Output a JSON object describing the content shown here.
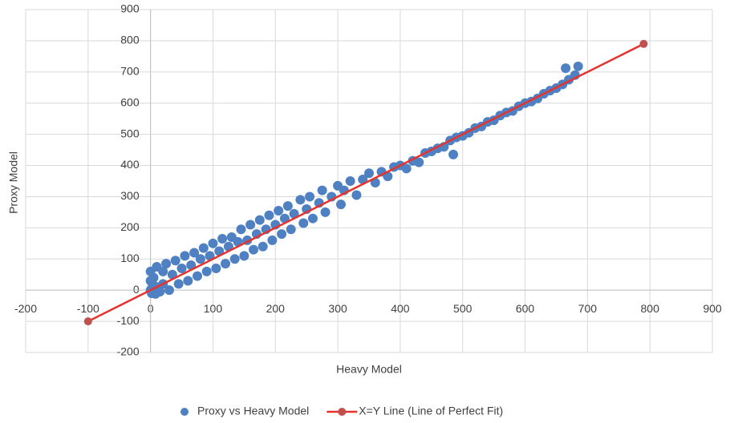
{
  "chart_data": {
    "type": "scatter",
    "x_label": "Heavy Model",
    "y_label": "Proxy Model",
    "xlim": [
      -200,
      900
    ],
    "ylim": [
      -200,
      900
    ],
    "xticks": [
      -200,
      -100,
      0,
      100,
      200,
      300,
      400,
      500,
      600,
      700,
      800,
      900
    ],
    "yticks": [
      -200,
      -100,
      0,
      100,
      200,
      300,
      400,
      500,
      600,
      700,
      800,
      900
    ],
    "grid": true,
    "legend": "bottom",
    "series": [
      {
        "name": "Proxy vs Heavy Model",
        "type": "scatter",
        "color": "#4f81c2",
        "x": [
          0,
          0,
          2,
          5,
          10,
          10,
          15,
          20,
          20,
          25,
          30,
          35,
          40,
          45,
          50,
          55,
          60,
          65,
          70,
          75,
          80,
          85,
          90,
          95,
          100,
          105,
          110,
          115,
          120,
          125,
          130,
          135,
          140,
          145,
          150,
          155,
          160,
          165,
          170,
          175,
          180,
          185,
          190,
          195,
          200,
          205,
          210,
          215,
          220,
          225,
          230,
          240,
          245,
          250,
          255,
          260,
          270,
          275,
          280,
          290,
          300,
          305,
          310,
          320,
          330,
          340,
          350,
          360,
          370,
          380,
          390,
          400,
          410,
          420,
          430,
          440,
          450,
          460,
          470,
          480,
          485,
          490,
          500,
          510,
          520,
          530,
          540,
          550,
          560,
          570,
          580,
          590,
          600,
          610,
          620,
          630,
          640,
          650,
          660,
          665,
          670,
          680,
          685,
          0,
          3,
          8
        ],
        "y": [
          60,
          0,
          -10,
          40,
          75,
          10,
          -5,
          60,
          20,
          85,
          0,
          50,
          95,
          20,
          70,
          110,
          30,
          80,
          120,
          45,
          100,
          135,
          60,
          110,
          150,
          70,
          125,
          165,
          85,
          140,
          170,
          100,
          155,
          195,
          110,
          160,
          210,
          130,
          180,
          225,
          140,
          195,
          240,
          160,
          210,
          255,
          180,
          230,
          270,
          195,
          245,
          290,
          215,
          260,
          300,
          230,
          280,
          320,
          250,
          300,
          335,
          275,
          320,
          350,
          305,
          355,
          375,
          345,
          380,
          365,
          395,
          400,
          390,
          415,
          410,
          440,
          445,
          455,
          460,
          480,
          435,
          490,
          495,
          505,
          520,
          525,
          540,
          545,
          560,
          570,
          575,
          590,
          600,
          605,
          615,
          630,
          640,
          648,
          660,
          712,
          675,
          690,
          718,
          30,
          20,
          -12
        ]
      },
      {
        "name": "X=Y Line (Line of Perfect Fit)",
        "type": "line",
        "color": "#e8322c",
        "marker_color": "#c0504d",
        "x": [
          -100,
          790
        ],
        "y": [
          -100,
          790
        ]
      }
    ]
  }
}
